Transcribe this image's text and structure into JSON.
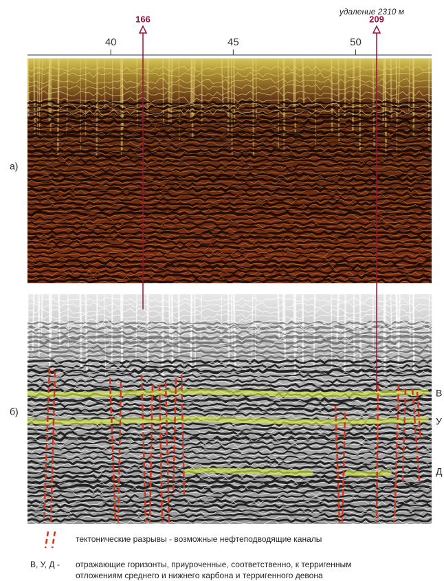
{
  "figure": {
    "distance_label": "удаление 2310 м",
    "axis": {
      "xlim": [
        36.6,
        53.1
      ],
      "ticks": [
        40,
        45,
        50
      ]
    },
    "wells": [
      {
        "label": "166"
      },
      {
        "label": "209"
      }
    ],
    "panels": [
      {
        "label": "а)"
      },
      {
        "label": "б)"
      }
    ],
    "horizons": [
      {
        "label": "В"
      },
      {
        "label": "У"
      },
      {
        "label": "Д"
      }
    ],
    "legend": {
      "faults": "тектонические разрывы - возможные нефтеподводящие каналы",
      "horizons_key": "В, У, Д  -",
      "horizons_text": [
        "отражающие горизонты, приуроченные, соответственно, к терригенным",
        "отложениям среднего и нижнего карбона и терригенного девона"
      ]
    }
  }
}
